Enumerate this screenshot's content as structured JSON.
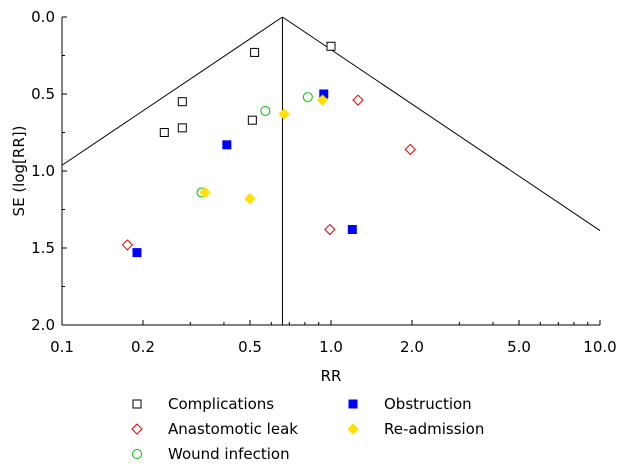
{
  "chart_data": {
    "type": "scatter",
    "title": "",
    "xlabel": "RR",
    "ylabel": "SE (log[RR])",
    "x_scale": "log",
    "xlim": [
      0.1,
      10.0
    ],
    "ylim": [
      0.0,
      2.0
    ],
    "y_inverted": true,
    "x_ticks": [
      0.1,
      0.2,
      0.5,
      1.0,
      2.0,
      5.0,
      10.0
    ],
    "x_tick_labels": [
      "0.1",
      "0.2",
      "0.5",
      "1.0",
      "2.0",
      "5.0",
      "10.0"
    ],
    "y_ticks": [
      0.0,
      0.5,
      1.0,
      1.5,
      2.0
    ],
    "y_tick_labels": [
      "0.0",
      "0.5",
      "1.0",
      "1.5",
      "2.0"
    ],
    "pooled_rr": 0.66,
    "funnel_z": 1.96,
    "legend_position": "bottom",
    "series": [
      {
        "name": "Complications",
        "marker": "square-open",
        "color": "#000000",
        "points": [
          [
            0.52,
            0.23
          ],
          [
            1.0,
            0.19
          ],
          [
            0.28,
            0.55
          ],
          [
            0.24,
            0.75
          ],
          [
            0.28,
            0.72
          ],
          [
            0.51,
            0.67
          ]
        ]
      },
      {
        "name": "Anastomotic leak",
        "marker": "diamond-open",
        "color": "#e00000",
        "points": [
          [
            1.26,
            0.54
          ],
          [
            1.97,
            0.86
          ],
          [
            0.99,
            1.38
          ],
          [
            0.175,
            1.48
          ]
        ]
      },
      {
        "name": "Wound infection",
        "marker": "circle-open",
        "color": "#00c000",
        "points": [
          [
            0.57,
            0.61
          ],
          [
            0.82,
            0.52
          ],
          [
            0.33,
            1.14
          ]
        ]
      },
      {
        "name": "Obstruction",
        "marker": "square-filled",
        "color": "#0000ff",
        "points": [
          [
            0.94,
            0.5
          ],
          [
            0.41,
            0.83
          ],
          [
            1.2,
            1.38
          ],
          [
            0.19,
            1.53
          ]
        ]
      },
      {
        "name": "Re-admission",
        "marker": "diamond-filled",
        "color": "#ffe000",
        "points": [
          [
            0.67,
            0.63
          ],
          [
            0.93,
            0.54
          ],
          [
            0.34,
            1.14
          ],
          [
            0.5,
            1.18
          ]
        ]
      }
    ]
  }
}
